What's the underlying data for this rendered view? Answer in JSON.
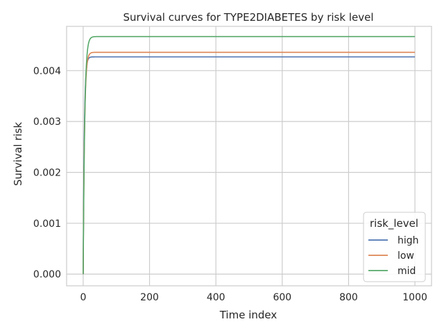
{
  "chart_data": {
    "type": "line",
    "title": "Survival curves for TYPE2DIABETES by risk level",
    "xlabel": "Time index",
    "ylabel": "Survival risk",
    "xlim": [
      -50,
      1050
    ],
    "ylim": [
      -0.00023,
      0.00487
    ],
    "xticks": [
      0,
      200,
      400,
      600,
      800,
      1000
    ],
    "xtick_labels": [
      "0",
      "200",
      "400",
      "600",
      "800",
      "1000"
    ],
    "yticks": [
      0,
      0.001,
      0.002,
      0.003,
      0.004
    ],
    "ytick_labels": [
      "0.000",
      "0.001",
      "0.002",
      "0.003",
      "0.004"
    ],
    "grid": true,
    "legend": {
      "title": "risk_level",
      "position": "bottom-right"
    },
    "series": [
      {
        "name": "high",
        "color": "#4c72b0",
        "plateau": 0.00427,
        "rate": 0.3,
        "x": [
          0,
          1,
          2,
          3,
          5,
          8,
          12,
          20,
          30,
          50,
          100,
          200,
          400,
          600,
          800,
          1000
        ],
        "y": [
          0,
          0.00111,
          0.00193,
          0.00254,
          0.00332,
          0.00389,
          0.00416,
          0.00426,
          0.00427,
          0.00427,
          0.00427,
          0.00427,
          0.00427,
          0.00427,
          0.00427,
          0.00427
        ]
      },
      {
        "name": "low",
        "color": "#dd8452",
        "plateau": 0.00436,
        "rate": 0.25,
        "x": [
          0,
          1,
          2,
          3,
          5,
          8,
          12,
          20,
          30,
          50,
          100,
          200,
          400,
          600,
          800,
          1000
        ],
        "y": [
          0,
          0.00096,
          0.00172,
          0.00231,
          0.00311,
          0.00376,
          0.00414,
          0.00433,
          0.00436,
          0.00436,
          0.00436,
          0.00436,
          0.00436,
          0.00436,
          0.00436,
          0.00436
        ]
      },
      {
        "name": "mid",
        "color": "#55a868",
        "plateau": 0.00467,
        "rate": 0.22,
        "x": [
          0,
          1,
          2,
          3,
          5,
          8,
          12,
          20,
          30,
          50,
          100,
          200,
          400,
          600,
          800,
          1000
        ],
        "y": [
          0,
          0.00092,
          0.00166,
          0.00226,
          0.00311,
          0.00386,
          0.00434,
          0.00461,
          0.00467,
          0.00467,
          0.00467,
          0.00467,
          0.00467,
          0.00467,
          0.00467,
          0.00467
        ]
      }
    ]
  }
}
